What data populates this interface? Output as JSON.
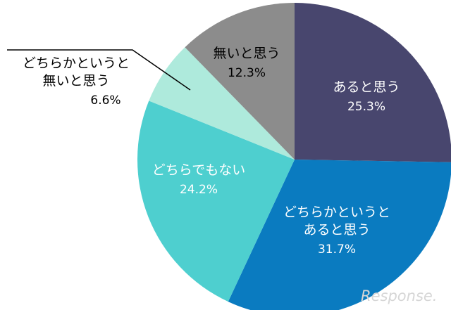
{
  "chart_data": {
    "type": "pie",
    "slices": [
      {
        "label": [
          "あると思う"
        ],
        "value": 25.3,
        "value_text": "25.3%",
        "color": "#48466e",
        "text_color": "#ffffff"
      },
      {
        "label": [
          "どちらかというと",
          "あると思う"
        ],
        "value": 31.7,
        "value_text": "31.7%",
        "color": "#0a7bc0",
        "text_color": "#ffffff"
      },
      {
        "label": [
          "どちらでもない"
        ],
        "value": 24.2,
        "value_text": "24.2%",
        "color": "#4ecfcf",
        "text_color": "#ffffff"
      },
      {
        "label": [
          "どちらかというと",
          "無いと思う"
        ],
        "value": 6.6,
        "value_text": "6.6%",
        "color": "#aeeadc",
        "text_color": "#000000"
      },
      {
        "label": [
          "無いと思う"
        ],
        "value": 12.3,
        "value_text": "12.3%",
        "color": "#8c8c8c",
        "text_color": "#000000"
      }
    ]
  },
  "watermark": "Response."
}
